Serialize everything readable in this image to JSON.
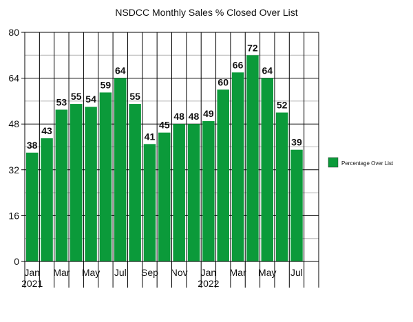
{
  "chart_data": {
    "type": "bar",
    "title": "NSDCC Monthly Sales % Closed Over List",
    "xlabel": "",
    "ylabel": "",
    "categories": [
      "Jan 2021",
      "Feb 2021",
      "Mar 2021",
      "Apr 2021",
      "May 2021",
      "Jun 2021",
      "Jul 2021",
      "Aug 2021",
      "Sep 2021",
      "Oct 2021",
      "Nov 2021",
      "Dec 2021",
      "Jan 2022",
      "Feb 2022",
      "Mar 2022",
      "Apr 2022",
      "May 2022",
      "Jun 2022",
      "Jul 2022",
      "Aug 2022"
    ],
    "tick_labels": [
      {
        "index": 0,
        "line1": "Jan",
        "line2": "2021"
      },
      {
        "index": 2,
        "line1": "Mar",
        "line2": ""
      },
      {
        "index": 4,
        "line1": "May",
        "line2": ""
      },
      {
        "index": 6,
        "line1": "Jul",
        "line2": ""
      },
      {
        "index": 8,
        "line1": "Sep",
        "line2": ""
      },
      {
        "index": 10,
        "line1": "Nov",
        "line2": ""
      },
      {
        "index": 12,
        "line1": "Jan",
        "line2": "2022"
      },
      {
        "index": 14,
        "line1": "Mar",
        "line2": ""
      },
      {
        "index": 16,
        "line1": "May",
        "line2": ""
      },
      {
        "index": 18,
        "line1": "Jul",
        "line2": ""
      }
    ],
    "series": [
      {
        "name": "Percentage Over List",
        "color": "#0b9a3a",
        "values": [
          38,
          43,
          53,
          55,
          54,
          59,
          64,
          55,
          41,
          45,
          48,
          48,
          49,
          60,
          66,
          72,
          64,
          52,
          39,
          null
        ]
      }
    ],
    "ylim": [
      0,
      80
    ],
    "yticks": [
      0,
      16,
      32,
      48,
      64,
      80
    ],
    "grid": {
      "major": true,
      "minor": true
    },
    "data_labels": true,
    "legend": {
      "position": "right"
    }
  }
}
